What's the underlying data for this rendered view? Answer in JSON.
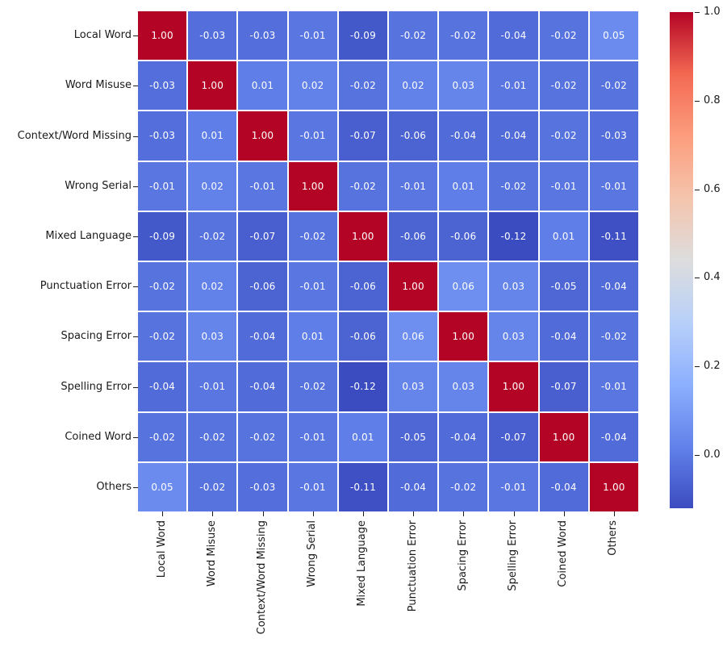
{
  "chart_data": {
    "type": "heatmap",
    "title": "",
    "xlabel": "",
    "ylabel": "",
    "categories": [
      "Local Word",
      "Word Misuse",
      "Context/Word Missing",
      "Wrong Serial",
      "Mixed Language",
      "Punctuation Error",
      "Spacing Error",
      "Spelling Error",
      "Coined Word",
      "Others"
    ],
    "matrix": [
      [
        1.0,
        -0.03,
        -0.03,
        -0.01,
        -0.09,
        -0.02,
        -0.02,
        -0.04,
        -0.02,
        0.05
      ],
      [
        -0.03,
        1.0,
        0.01,
        0.02,
        -0.02,
        0.02,
        0.03,
        -0.01,
        -0.02,
        -0.02
      ],
      [
        -0.03,
        0.01,
        1.0,
        -0.01,
        -0.07,
        -0.06,
        -0.04,
        -0.04,
        -0.02,
        -0.03
      ],
      [
        -0.01,
        0.02,
        -0.01,
        1.0,
        -0.02,
        -0.01,
        0.01,
        -0.02,
        -0.01,
        -0.01
      ],
      [
        -0.09,
        -0.02,
        -0.07,
        -0.02,
        1.0,
        -0.06,
        -0.06,
        -0.12,
        0.01,
        -0.11
      ],
      [
        -0.02,
        0.02,
        -0.06,
        -0.01,
        -0.06,
        1.0,
        0.06,
        0.03,
        -0.05,
        -0.04
      ],
      [
        -0.02,
        0.03,
        -0.04,
        0.01,
        -0.06,
        0.06,
        1.0,
        0.03,
        -0.04,
        -0.02
      ],
      [
        -0.04,
        -0.01,
        -0.04,
        -0.02,
        -0.12,
        0.03,
        0.03,
        1.0,
        -0.07,
        -0.01
      ],
      [
        -0.02,
        -0.02,
        -0.02,
        -0.01,
        0.01,
        -0.05,
        -0.04,
        -0.07,
        1.0,
        -0.04
      ],
      [
        0.05,
        -0.02,
        -0.03,
        -0.01,
        -0.11,
        -0.04,
        -0.02,
        -0.01,
        -0.04,
        1.0
      ]
    ],
    "value_decimals": 2,
    "vmin": -0.12,
    "vmax": 1.0,
    "grid": true,
    "gridline_color": "#ffffff",
    "legend_position": "right-colorbar",
    "colorbar": {
      "tick_labels": [
        "1.0",
        "0.8",
        "0.6",
        "0.4",
        "0.2",
        "0.0"
      ],
      "tick_values": [
        1.0,
        0.8,
        0.6,
        0.4,
        0.2,
        0.0
      ]
    },
    "colormap": {
      "name": "coolwarm",
      "stops": [
        {
          "t": 0.0,
          "color": "#3b4cc0"
        },
        {
          "t": 0.125,
          "color": "#6282ea"
        },
        {
          "t": 0.25,
          "color": "#8db0fe"
        },
        {
          "t": 0.375,
          "color": "#b8d0f9"
        },
        {
          "t": 0.5,
          "color": "#dddddd"
        },
        {
          "t": 0.625,
          "color": "#f5c4ad"
        },
        {
          "t": 0.75,
          "color": "#fc9d7d"
        },
        {
          "t": 0.875,
          "color": "#f36952"
        },
        {
          "t": 1.0,
          "color": "#b40426"
        }
      ]
    },
    "annotation_colors": {
      "light": "#ffffff",
      "dark": "#262626"
    },
    "axis_text_color": "#1a1a1a",
    "background_color": "#ffffff"
  }
}
